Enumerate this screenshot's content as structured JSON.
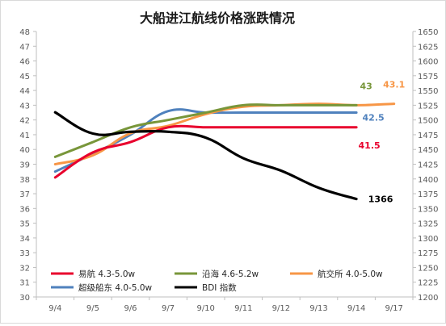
{
  "chart_data": {
    "type": "line",
    "title": "大船进江航线价格涨跌情况",
    "categories": [
      "9/4",
      "9/5",
      "9/6",
      "9/7",
      "9/10",
      "9/11",
      "9/12",
      "9/13",
      "9/14",
      "9/17"
    ],
    "ylim": [
      30,
      48
    ],
    "y2lim": [
      1200,
      1650
    ],
    "y_ticks": [
      30,
      31,
      32,
      33,
      34,
      35,
      36,
      37,
      38,
      39,
      40,
      41,
      42,
      43,
      44,
      45,
      46,
      47,
      48
    ],
    "y2_ticks": [
      1200,
      1225,
      1250,
      1275,
      1300,
      1325,
      1350,
      1375,
      1400,
      1425,
      1450,
      1475,
      1500,
      1525,
      1550,
      1575,
      1600,
      1625,
      1650
    ],
    "grid": false,
    "legend_position": "bottom",
    "series": [
      {
        "name": "易航 4.3-5.0w",
        "axis": "left",
        "color": "#e8002d",
        "values": [
          38.1,
          39.8,
          40.5,
          41.5,
          41.5,
          41.5,
          41.5,
          41.5,
          41.5,
          null
        ],
        "end_label": "41.5"
      },
      {
        "name": "沿海 4.6-5.2w",
        "axis": "left",
        "color": "#78963a",
        "values": [
          39.5,
          40.5,
          41.5,
          42.0,
          42.5,
          43.0,
          43.0,
          43.0,
          43.0,
          null
        ],
        "end_label": "43"
      },
      {
        "name": "航交所 4.0-5.0w",
        "axis": "left",
        "color": "#f79646",
        "values": [
          39.0,
          39.6,
          41.1,
          41.6,
          42.4,
          42.9,
          43.0,
          43.1,
          43.0,
          43.1
        ],
        "end_label": "43.1"
      },
      {
        "name": "超级船东 4.0-5.0w",
        "axis": "left",
        "color": "#4f81bd",
        "values": [
          38.5,
          39.7,
          41.0,
          42.6,
          42.5,
          42.5,
          42.5,
          42.5,
          42.5,
          null
        ],
        "end_label": "42.5"
      },
      {
        "name": "BDI 指数",
        "axis": "right",
        "color": "#000000",
        "values": [
          1513,
          1477,
          1480,
          1480,
          1470,
          1435,
          1414,
          1385,
          1366,
          null
        ],
        "end_label": "1366"
      }
    ]
  }
}
